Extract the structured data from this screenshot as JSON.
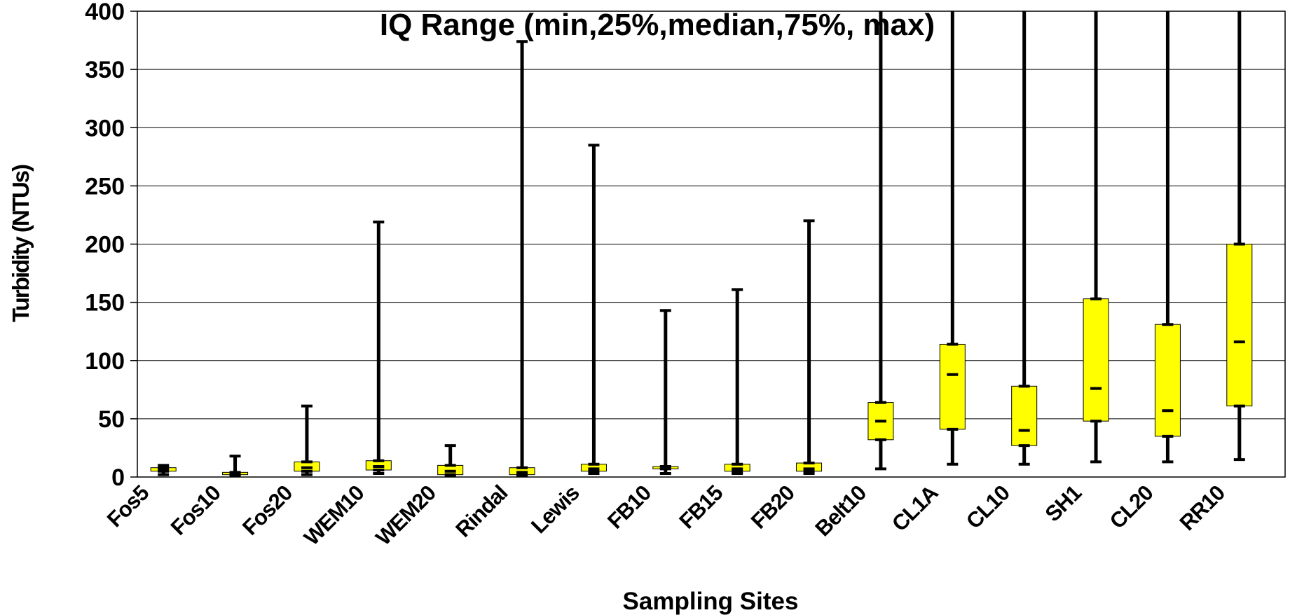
{
  "chart_data": {
    "type": "boxplot",
    "title": "IQ Range (min,25%,median,75%, max)",
    "xlabel": "Sampling Sites",
    "ylabel": "Turbidity (NTUs)",
    "ylim": [
      0,
      400
    ],
    "yticks": [
      0,
      50,
      100,
      150,
      200,
      250,
      300,
      350,
      400
    ],
    "grid": true,
    "box_color": "#ffff00",
    "line_color": "#000000",
    "categories": [
      "Fos5",
      "Fos10",
      "Fos20",
      "WEM10",
      "WEM20",
      "Rindal",
      "Lewis",
      "FB10",
      "FB15",
      "FB20",
      "Belt10",
      "CL1A",
      "CL10",
      "SH1",
      "CL20",
      "RR10"
    ],
    "boxes": [
      {
        "min": 2,
        "q1": 5,
        "median": 7,
        "q3": 8,
        "max": 10
      },
      {
        "min": 1,
        "q1": 2,
        "median": 3,
        "q3": 4,
        "max": 18
      },
      {
        "min": 2,
        "q1": 5,
        "median": 8,
        "q3": 13,
        "max": 61
      },
      {
        "min": 3,
        "q1": 6,
        "median": 9,
        "q3": 14,
        "max": 219
      },
      {
        "min": 1,
        "q1": 2,
        "median": 5,
        "q3": 10,
        "max": 27
      },
      {
        "min": 1,
        "q1": 2,
        "median": 4,
        "q3": 8,
        "max": 374
      },
      {
        "min": 3,
        "q1": 5,
        "median": 7,
        "q3": 11,
        "max": 285
      },
      {
        "min": 3,
        "q1": 7,
        "median": 8,
        "q3": 9,
        "max": 143
      },
      {
        "min": 3,
        "q1": 5,
        "median": 7,
        "q3": 11,
        "max": 161
      },
      {
        "min": 3,
        "q1": 5,
        "median": 7,
        "q3": 12,
        "max": 220
      },
      {
        "min": 7,
        "q1": 32,
        "median": 48,
        "q3": 64,
        "max": 400
      },
      {
        "min": 11,
        "q1": 41,
        "median": 88,
        "q3": 114,
        "max": 400
      },
      {
        "min": 11,
        "q1": 27,
        "median": 40,
        "q3": 78,
        "max": 400
      },
      {
        "min": 13,
        "q1": 48,
        "median": 76,
        "q3": 153,
        "max": 400
      },
      {
        "min": 13,
        "q1": 35,
        "median": 57,
        "q3": 131,
        "max": 400
      },
      {
        "min": 15,
        "q1": 61,
        "median": 116,
        "q3": 200,
        "max": 400
      }
    ]
  }
}
